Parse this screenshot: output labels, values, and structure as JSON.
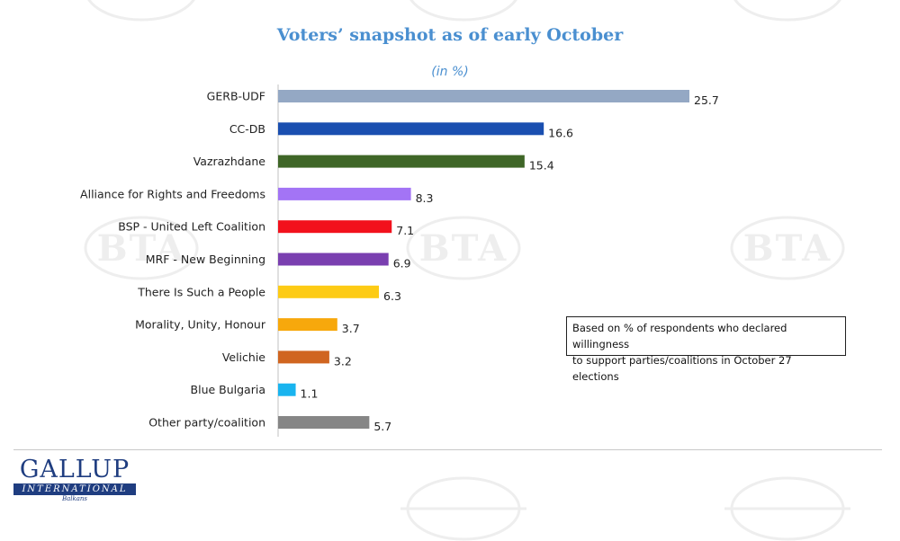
{
  "colors": {
    "title": "#4a8fd0",
    "axis": "#c0c0c0",
    "logo": "#1f3d80"
  },
  "watermark_text": "BTA",
  "chart_data": {
    "type": "bar",
    "orientation": "horizontal",
    "title": "Voters’ snapshot as of early October",
    "subtitle": "(in %)",
    "categories": [
      "GERB-UDF",
      "CC-DB",
      "Vazrazhdane",
      "Alliance for Rights and Freedoms",
      "BSP - United Left Coalition",
      "MRF - New Beginning",
      "There Is Such a People",
      "Morality, Unity, Honour",
      "Velichie",
      "Blue Bulgaria",
      "Other party/coalition"
    ],
    "values": [
      25.7,
      16.6,
      15.4,
      8.3,
      7.1,
      6.9,
      6.3,
      3.7,
      3.2,
      1.1,
      5.7
    ],
    "value_labels": [
      "25.7",
      "16.6",
      "15.4",
      "8.3",
      "7.1",
      "6.9",
      "6.3",
      "3.7",
      "3.2",
      "1.1",
      "5.7"
    ],
    "bar_colors": [
      "#94a8c4",
      "#1a4fb0",
      "#3f6627",
      "#a374f5",
      "#f2111c",
      "#7a3fb0",
      "#fdcb15",
      "#f7a80c",
      "#d06520",
      "#19b4ef",
      "#868686"
    ],
    "xlim": [
      0,
      25.7
    ],
    "grid": false,
    "legend": "none"
  },
  "note": {
    "line1": "Based on % of respondents who declared willingness",
    "line2": "to support parties/coalitions in October 27 elections"
  },
  "logo": {
    "main": "GALLUP",
    "bar": "INTERNATIONAL",
    "sub": "Balkans"
  }
}
